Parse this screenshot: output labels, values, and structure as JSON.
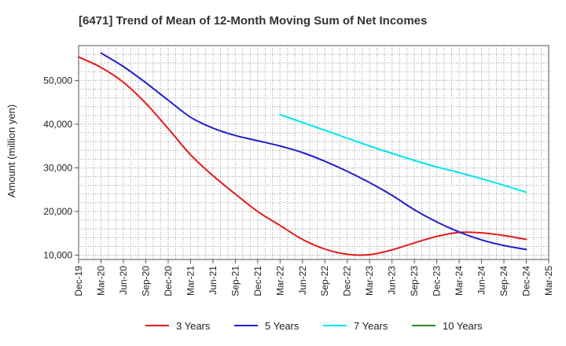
{
  "chart_data": {
    "type": "line",
    "title": "[6471]  Trend of Mean of 12-Month Moving Sum of Net Incomes",
    "xlabel": "",
    "ylabel": "Amount (million yen)",
    "ylim": [
      9000,
      58000
    ],
    "yticks": [
      10000,
      20000,
      30000,
      40000,
      50000
    ],
    "ytick_labels": [
      "10,000",
      "20,000",
      "30,000",
      "40,000",
      "50,000"
    ],
    "x_tick_labels": [
      "Dec-19",
      "Mar-20",
      "Jun-20",
      "Sep-20",
      "Dec-20",
      "Mar-21",
      "Jun-21",
      "Sep-21",
      "Dec-21",
      "Mar-22",
      "Jun-22",
      "Sep-22",
      "Dec-22",
      "Mar-23",
      "Jun-23",
      "Sep-23",
      "Dec-23",
      "Mar-24",
      "Jun-24",
      "Sep-24",
      "Dec-24",
      "Mar-25"
    ],
    "grid": true,
    "legend_position": "bottom",
    "series": [
      {
        "name": "3 Years",
        "color": "#e41a1c",
        "x": [
          "Dec-19",
          "Mar-20",
          "Jun-20",
          "Sep-20",
          "Dec-20",
          "Mar-21",
          "Jun-21",
          "Sep-21",
          "Dec-21",
          "Mar-22",
          "Jun-22",
          "Sep-22",
          "Dec-22",
          "Mar-23",
          "Jun-23",
          "Sep-23",
          "Dec-23",
          "Mar-24",
          "Jun-24",
          "Sep-24",
          "Dec-24"
        ],
        "values": [
          55400,
          53000,
          49600,
          44800,
          39000,
          33000,
          28200,
          24000,
          20000,
          16800,
          13600,
          11400,
          10200,
          10100,
          11200,
          12800,
          14300,
          15200,
          15100,
          14500,
          13600
        ]
      },
      {
        "name": "5 Years",
        "color": "#1f1fcf",
        "x": [
          "Mar-20",
          "Jun-20",
          "Sep-20",
          "Dec-20",
          "Mar-21",
          "Jun-21",
          "Sep-21",
          "Dec-21",
          "Mar-22",
          "Jun-22",
          "Sep-22",
          "Dec-22",
          "Mar-23",
          "Jun-23",
          "Sep-23",
          "Dec-23",
          "Mar-24",
          "Jun-24",
          "Sep-24",
          "Dec-24"
        ],
        "values": [
          56300,
          53200,
          49500,
          45500,
          41600,
          39100,
          37400,
          36200,
          35000,
          33500,
          31500,
          29200,
          26600,
          23700,
          20400,
          17600,
          15300,
          13500,
          12200,
          11300
        ]
      },
      {
        "name": "7 Years",
        "color": "#00e5ee",
        "x": [
          "Mar-22",
          "Jun-22",
          "Sep-22",
          "Dec-22",
          "Mar-23",
          "Jun-23",
          "Sep-23",
          "Dec-23",
          "Mar-24",
          "Jun-24",
          "Sep-24",
          "Dec-24"
        ],
        "values": [
          42200,
          40400,
          38600,
          36800,
          35000,
          33300,
          31700,
          30200,
          28900,
          27500,
          26000,
          24400
        ]
      },
      {
        "name": "10 Years",
        "color": "#228b22",
        "x": [],
        "values": []
      }
    ]
  }
}
